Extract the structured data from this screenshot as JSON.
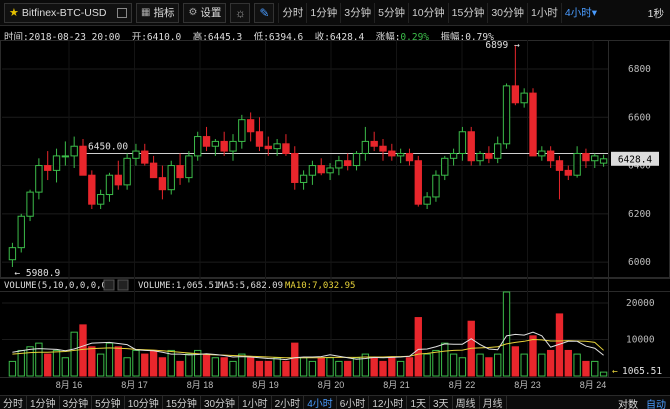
{
  "toolbar": {
    "symbol": "Bitfinex-BTC-USD",
    "indicators_label": "指标",
    "settings_label": "设置",
    "intervals": [
      "分时",
      "1分钟",
      "3分钟",
      "5分钟",
      "10分钟",
      "15分钟",
      "30分钟",
      "1小时",
      "4小时▾"
    ],
    "active_interval_index": 8,
    "refresh_label": "1秒"
  },
  "info_line": {
    "time": "时间:2018-08-23 20:00",
    "open": "开:6410.0",
    "high": "高:6445.3",
    "low": "低:6394.6",
    "close": "收:6428.4",
    "change_label": "涨幅:",
    "change_value": "0.29%",
    "amplitude": "振幅:0.79%"
  },
  "volume_header": {
    "title": "VOLUME(5,10,0,0,0,0)",
    "volume": "VOLUME:1,065.51",
    "ma5": "MA5:5,682.09",
    "ma10": "MA10:7,032.95"
  },
  "colors": {
    "up": "#3cbc4a",
    "down": "#e8262c",
    "ma5": "#e0e0e0",
    "ma10": "#e6d23a",
    "accent": "#4a9cff"
  },
  "chart_data": {
    "type": "candlestick",
    "symbol": "Bitfinex-BTC-USD",
    "price_ticks": [
      "6800",
      "6600",
      "6400",
      "6200",
      "6000"
    ],
    "price_range": [
      5955,
      6920
    ],
    "current_price_label": "6428.4",
    "annotations": {
      "high_label": "6899",
      "low_label": "5980.9",
      "level_label": "6450.00"
    },
    "volume_ticks": [
      "20000",
      "10000"
    ],
    "volume_range": [
      0,
      23000
    ],
    "last_volume_label": "1065.51",
    "x_labels": [
      "8月 16",
      "8月 17",
      "8月 18",
      "8月 19",
      "8月 20",
      "8月 21",
      "8月 22",
      "8月 23",
      "8月 24"
    ],
    "candles": [
      [
        6010,
        6080,
        5980,
        6060,
        4000
      ],
      [
        6060,
        6200,
        6040,
        6190,
        7000
      ],
      [
        6190,
        6300,
        6170,
        6290,
        8000
      ],
      [
        6290,
        6430,
        6260,
        6400,
        9000
      ],
      [
        6400,
        6460,
        6340,
        6380,
        6000
      ],
      [
        6380,
        6470,
        6330,
        6440,
        7000
      ],
      [
        6440,
        6500,
        6400,
        6440,
        5000
      ],
      [
        6440,
        6520,
        6390,
        6480,
        12000
      ],
      [
        6480,
        6510,
        6360,
        6360,
        14000
      ],
      [
        6360,
        6380,
        6220,
        6240,
        8000
      ],
      [
        6240,
        6300,
        6220,
        6280,
        6000
      ],
      [
        6280,
        6370,
        6250,
        6360,
        9000
      ],
      [
        6360,
        6420,
        6300,
        6320,
        8000
      ],
      [
        6320,
        6450,
        6300,
        6430,
        5000
      ],
      [
        6430,
        6490,
        6400,
        6460,
        7000
      ],
      [
        6460,
        6490,
        6400,
        6410,
        6000
      ],
      [
        6410,
        6440,
        6350,
        6350,
        7000
      ],
      [
        6350,
        6400,
        6260,
        6300,
        5000
      ],
      [
        6300,
        6420,
        6280,
        6400,
        7000
      ],
      [
        6400,
        6450,
        6320,
        6350,
        4000
      ],
      [
        6350,
        6460,
        6330,
        6440,
        6000
      ],
      [
        6440,
        6540,
        6420,
        6520,
        7000
      ],
      [
        6520,
        6560,
        6460,
        6480,
        6000
      ],
      [
        6480,
        6510,
        6440,
        6500,
        5000
      ],
      [
        6500,
        6540,
        6440,
        6460,
        5000
      ],
      [
        6460,
        6530,
        6420,
        6500,
        4000
      ],
      [
        6500,
        6610,
        6470,
        6590,
        6000
      ],
      [
        6590,
        6620,
        6500,
        6540,
        5000
      ],
      [
        6540,
        6600,
        6460,
        6480,
        4000
      ],
      [
        6480,
        6520,
        6440,
        6470,
        4000
      ],
      [
        6470,
        6510,
        6440,
        6490,
        5000
      ],
      [
        6490,
        6530,
        6440,
        6450,
        4000
      ],
      [
        6450,
        6480,
        6300,
        6330,
        9000
      ],
      [
        6330,
        6380,
        6300,
        6360,
        5000
      ],
      [
        6360,
        6420,
        6320,
        6400,
        4000
      ],
      [
        6400,
        6430,
        6360,
        6370,
        5000
      ],
      [
        6370,
        6410,
        6340,
        6390,
        5000
      ],
      [
        6390,
        6440,
        6360,
        6420,
        4000
      ],
      [
        6420,
        6450,
        6380,
        6400,
        4000
      ],
      [
        6400,
        6460,
        6380,
        6450,
        5000
      ],
      [
        6450,
        6560,
        6420,
        6500,
        6000
      ],
      [
        6500,
        6540,
        6460,
        6480,
        5000
      ],
      [
        6480,
        6510,
        6420,
        6460,
        4000
      ],
      [
        6460,
        6490,
        6420,
        6440,
        5000
      ],
      [
        6440,
        6470,
        6410,
        6450,
        4000
      ],
      [
        6450,
        6470,
        6400,
        6420,
        5000
      ],
      [
        6420,
        6440,
        6230,
        6240,
        16000
      ],
      [
        6240,
        6290,
        6220,
        6270,
        6000
      ],
      [
        6270,
        6380,
        6250,
        6360,
        7000
      ],
      [
        6360,
        6440,
        6340,
        6430,
        9000
      ],
      [
        6430,
        6470,
        6400,
        6450,
        6000
      ],
      [
        6450,
        6560,
        6420,
        6540,
        5000
      ],
      [
        6540,
        6560,
        6400,
        6420,
        15000
      ],
      [
        6420,
        6460,
        6400,
        6450,
        6000
      ],
      [
        6450,
        6480,
        6410,
        6430,
        5000
      ],
      [
        6430,
        6520,
        6410,
        6490,
        6000
      ],
      [
        6490,
        6740,
        6470,
        6730,
        23000
      ],
      [
        6730,
        6900,
        6650,
        6660,
        8000
      ],
      [
        6660,
        6720,
        6640,
        6700,
        6000
      ],
      [
        6700,
        6720,
        6440,
        6440,
        11000
      ],
      [
        6440,
        6480,
        6420,
        6460,
        6000
      ],
      [
        6460,
        6480,
        6390,
        6420,
        7000
      ],
      [
        6420,
        6440,
        6260,
        6380,
        17000
      ],
      [
        6380,
        6400,
        6340,
        6360,
        7000
      ],
      [
        6360,
        6480,
        6350,
        6450,
        6000
      ],
      [
        6450,
        6470,
        6390,
        6420,
        4000
      ],
      [
        6420,
        6450,
        6390,
        6440,
        4000
      ],
      [
        6410,
        6445,
        6395,
        6428,
        1065
      ]
    ],
    "ma5": [
      6500,
      6900,
      7300,
      7500,
      7400,
      7300,
      6900,
      7400,
      8200,
      9000,
      9100,
      9200,
      8900,
      8600,
      7200,
      7000,
      6900,
      6500,
      6000,
      6000,
      5800,
      5900,
      6100,
      5900,
      5600,
      5200,
      5300,
      5200,
      5000,
      4800,
      4700,
      4500,
      5000,
      5200,
      5200,
      5300,
      5800,
      5400,
      5000,
      4600,
      4800,
      5100,
      5000,
      5100,
      5200,
      5400,
      7300,
      7400,
      8000,
      8800,
      8700,
      8700,
      10200,
      8600,
      7400,
      7200,
      11000,
      11400,
      11200,
      12000,
      11000,
      7900,
      8700,
      9500,
      9500,
      8200,
      7600,
      5682
    ],
    "ma10": [
      6000,
      6200,
      6400,
      6500,
      6500,
      6600,
      6700,
      7000,
      7300,
      7500,
      7600,
      7700,
      7600,
      7500,
      7300,
      7200,
      7100,
      6900,
      6700,
      6500,
      6300,
      6100,
      5900,
      5800,
      5700,
      5600,
      5500,
      5400,
      5300,
      5200,
      5100,
      5000,
      5000,
      5000,
      5000,
      5000,
      5100,
      5100,
      5100,
      5100,
      5200,
      5200,
      5200,
      5300,
      5300,
      5400,
      6000,
      6200,
      6500,
      6800,
      7000,
      7100,
      7600,
      7700,
      7800,
      8000,
      8800,
      9200,
      9500,
      10000,
      9900,
      9600,
      9600,
      9700,
      9600,
      9500,
      9200,
      7033
    ]
  },
  "bottombar": {
    "intervals": [
      "分时",
      "1分钟",
      "3分钟",
      "5分钟",
      "10分钟",
      "15分钟",
      "30分钟",
      "1小时",
      "2小时",
      "4小时",
      "6小时",
      "12小时",
      "1天",
      "3天",
      "周线",
      "月线"
    ],
    "active_index": 9,
    "log_label": "对数",
    "auto_label": "自动"
  }
}
